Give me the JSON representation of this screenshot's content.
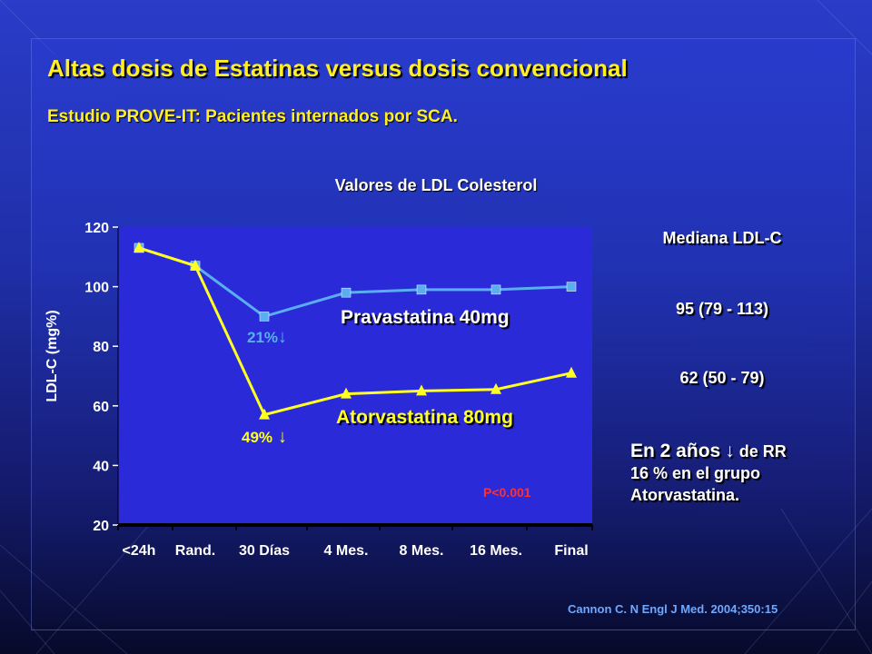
{
  "slide": {
    "title": "Altas dosis de Estatinas versus dosis convencional",
    "subtitle": "Estudio PROVE-IT: Pacientes internados por SCA.",
    "citation": "Cannon C. N Engl J Med. 2004;350:15"
  },
  "side_panel": {
    "heading": "Mediana LDL-C",
    "prava_median": "95 (79 - 113)",
    "atorva_median": "62 (50 - 79)",
    "note_prefix": "En 2 años",
    "note_arrow": "↓",
    "note_rest": "de RR",
    "note_line2": "16 % en el grupo",
    "note_line3": "Atorvastatina."
  },
  "colors": {
    "title": "#ffee22",
    "pravastatina": "#5aaef0",
    "atorvastatina": "#ffff22",
    "plot_bg": "#2a2ad8",
    "pvalue": "#ff3030",
    "citation": "#6ea8ff"
  },
  "chart_data": {
    "type": "line",
    "title": "Valores de LDL Colesterol",
    "ylabel": "LDL-C (mg%)",
    "xlabel": "",
    "ylim": [
      20,
      120
    ],
    "yticks": [
      20,
      40,
      60,
      80,
      100,
      120
    ],
    "categories": [
      "<24h",
      "Rand.",
      "30 Días",
      "4 Mes.",
      "8 Mes.",
      "16 Mes.",
      "Final"
    ],
    "series": [
      {
        "name": "Pravastatina 40mg",
        "marker": "square",
        "values": [
          113,
          107,
          90,
          98,
          99,
          99,
          100
        ]
      },
      {
        "name": "Atorvastatina 80mg",
        "marker": "triangle",
        "values": [
          113,
          107,
          57,
          64,
          65,
          65.5,
          71
        ]
      }
    ],
    "annotations": {
      "prava_drop": "21%",
      "atorva_drop": "49%",
      "drop_arrow": "↓",
      "pvalue": "P<0.001"
    },
    "grid": false,
    "legend": "inline labels"
  }
}
